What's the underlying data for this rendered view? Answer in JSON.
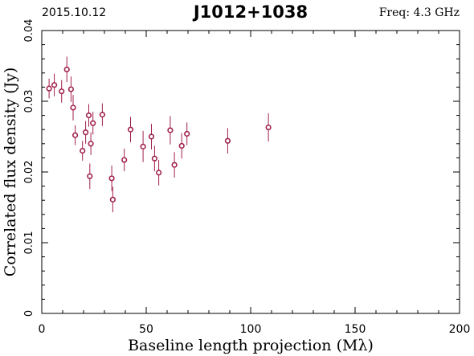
{
  "header": {
    "date": "2015.10.12",
    "source": "J1012+1038",
    "freq": "Freq: 4.3 GHz"
  },
  "colors": {
    "points": "#a0204a",
    "freq_text": "#a0204a",
    "axes": "#000000"
  },
  "chart_data": {
    "type": "scatter",
    "title": "J1012+1038",
    "xlabel": "Baseline length projection (Mλ)",
    "ylabel": "Correlated flux density (Jy)",
    "xlim": [
      0,
      200
    ],
    "ylim": [
      0,
      0.04
    ],
    "xticks": [
      0,
      50,
      100,
      150,
      200
    ],
    "xtick_labels": [
      "0",
      "50",
      "100",
      "150",
      "200"
    ],
    "yticks": [
      0,
      0.01,
      0.02,
      0.03,
      0.04
    ],
    "ytick_labels": [
      "0",
      "0.01",
      "0.02",
      "0.03",
      "0.04"
    ],
    "grid": false,
    "points": [
      {
        "x": 3.5,
        "y": 0.0318,
        "err": 0.0014
      },
      {
        "x": 6.0,
        "y": 0.0323,
        "err": 0.0016
      },
      {
        "x": 9.5,
        "y": 0.0314,
        "err": 0.0016
      },
      {
        "x": 12.0,
        "y": 0.0345,
        "err": 0.0018
      },
      {
        "x": 14.0,
        "y": 0.0317,
        "err": 0.0018
      },
      {
        "x": 15.0,
        "y": 0.0291,
        "err": 0.0018
      },
      {
        "x": 16.0,
        "y": 0.0252,
        "err": 0.0014
      },
      {
        "x": 19.5,
        "y": 0.023,
        "err": 0.0014
      },
      {
        "x": 21.0,
        "y": 0.0256,
        "err": 0.0016
      },
      {
        "x": 22.5,
        "y": 0.028,
        "err": 0.0016
      },
      {
        "x": 23.0,
        "y": 0.0194,
        "err": 0.0018
      },
      {
        "x": 23.5,
        "y": 0.024,
        "err": 0.0016
      },
      {
        "x": 24.5,
        "y": 0.0269,
        "err": 0.0016
      },
      {
        "x": 29.0,
        "y": 0.0281,
        "err": 0.0016
      },
      {
        "x": 33.5,
        "y": 0.0191,
        "err": 0.0018
      },
      {
        "x": 34.0,
        "y": 0.0161,
        "err": 0.0018
      },
      {
        "x": 39.5,
        "y": 0.0217,
        "err": 0.0016
      },
      {
        "x": 42.5,
        "y": 0.026,
        "err": 0.0018
      },
      {
        "x": 48.5,
        "y": 0.0236,
        "err": 0.0022
      },
      {
        "x": 52.5,
        "y": 0.025,
        "err": 0.0018
      },
      {
        "x": 54.0,
        "y": 0.0219,
        "err": 0.0018
      },
      {
        "x": 56.0,
        "y": 0.0199,
        "err": 0.0018
      },
      {
        "x": 61.5,
        "y": 0.0259,
        "err": 0.002
      },
      {
        "x": 63.5,
        "y": 0.021,
        "err": 0.0018
      },
      {
        "x": 67.0,
        "y": 0.0237,
        "err": 0.0018
      },
      {
        "x": 69.5,
        "y": 0.0254,
        "err": 0.0016
      },
      {
        "x": 89.0,
        "y": 0.0244,
        "err": 0.0018
      },
      {
        "x": 108.5,
        "y": 0.0263,
        "err": 0.002
      }
    ]
  }
}
